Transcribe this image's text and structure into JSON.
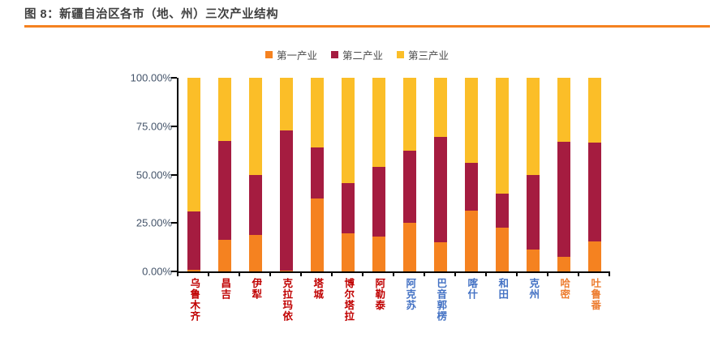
{
  "header": {
    "figure_label": "图 8：新疆自治区各市（地、州）三次产业结构",
    "accent_color": "#F58220",
    "title_color": "#404040"
  },
  "legend": [
    {
      "label": "第一产业",
      "color": "#F58220"
    },
    {
      "label": "第二产业",
      "color": "#A51C40"
    },
    {
      "label": "第三产业",
      "color": "#FBBE28"
    }
  ],
  "chart_data": {
    "type": "bar",
    "stacked": true,
    "unit": "%",
    "title": "新疆自治区各市（地、州）三次产业结构",
    "categories": [
      "乌鲁木齐",
      "昌吉",
      "伊犁",
      "克拉玛依",
      "塔城",
      "博尔塔拉",
      "阿勒泰",
      "阿克苏",
      "巴音郭楞",
      "喀什",
      "和田",
      "克州",
      "哈密",
      "吐鲁番"
    ],
    "category_label_colors": [
      "#C00000",
      "#C00000",
      "#C00000",
      "#C00000",
      "#C00000",
      "#C00000",
      "#C00000",
      "#4472C4",
      "#4472C4",
      "#4472C4",
      "#4472C4",
      "#4472C4",
      "#ED7D31",
      "#ED7D31"
    ],
    "series": [
      {
        "name": "第一产业",
        "color": "#F58220",
        "values": [
          1.0,
          16.5,
          19.0,
          0.5,
          37.5,
          19.5,
          18.0,
          25.0,
          15.0,
          31.5,
          22.5,
          11.5,
          7.5,
          15.5
        ]
      },
      {
        "name": "第二产业",
        "color": "#A51C40",
        "values": [
          30.0,
          51.0,
          31.0,
          72.5,
          26.5,
          26.0,
          36.0,
          37.5,
          54.5,
          24.5,
          17.5,
          38.5,
          59.5,
          51.0
        ]
      },
      {
        "name": "第三产业",
        "color": "#FBBE28",
        "values": [
          69.0,
          32.5,
          50.0,
          27.0,
          36.0,
          54.5,
          46.0,
          37.5,
          30.5,
          44.0,
          60.0,
          50.0,
          33.0,
          33.5
        ]
      }
    ],
    "yticks": [
      "100.00%",
      "75.00%",
      "50.00%",
      "25.00%",
      "0.00%"
    ],
    "ylim": [
      0,
      100
    ],
    "ylabel": "",
    "xlabel": "",
    "grid": false,
    "legend_position": "top",
    "axis_color": "#000000",
    "axis_label_color": "#44546A"
  }
}
